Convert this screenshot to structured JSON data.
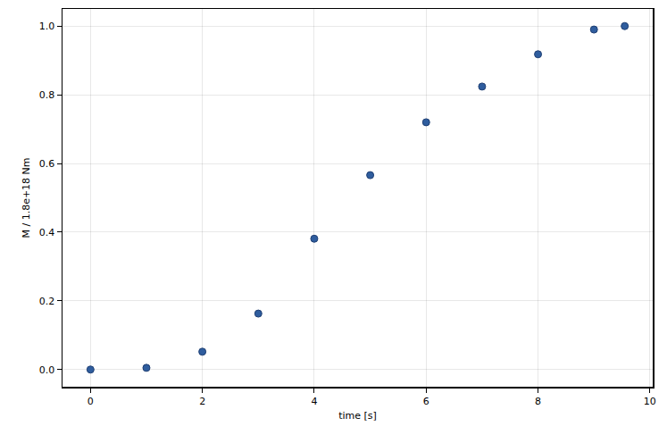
{
  "chart_data": {
    "type": "scatter",
    "x_label": "time [s]",
    "y_label": "M / 1.8e+18 Nm",
    "x": [
      0,
      1,
      2,
      3,
      4,
      5,
      6,
      7,
      8,
      9,
      9.55
    ],
    "values": [
      0.0,
      0.005,
      0.052,
      0.163,
      0.381,
      0.566,
      0.72,
      0.824,
      0.918,
      0.99,
      1.0
    ],
    "color": "#2f5d9e",
    "marker": "circle",
    "xlim": [
      -0.5,
      10.05
    ],
    "xticks": [
      0,
      2,
      4,
      6,
      8,
      10
    ],
    "ylim": [
      -0.05,
      1.05
    ],
    "yticks": [
      {
        "value": 0,
        "label": "0.0"
      },
      {
        "value": 0.2,
        "label": "0.2"
      },
      {
        "value": 0.4,
        "label": "0.4"
      },
      {
        "value": 0.6,
        "label": "0.6"
      },
      {
        "value": 0.8,
        "label": "0.8"
      },
      {
        "value": 1,
        "label": "1.0"
      }
    ],
    "grid": true
  }
}
